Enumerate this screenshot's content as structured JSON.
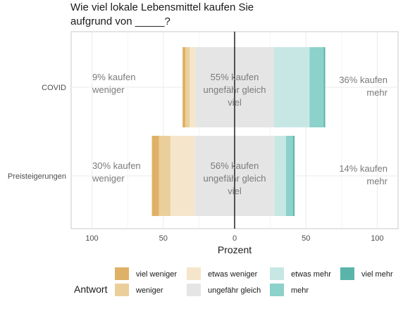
{
  "chart_data": {
    "type": "bar",
    "subtype": "diverging-stacked-likert",
    "title": "Wie viel lokale Lebensmittel kaufen Sie aufgrund von _____?",
    "title_lines": [
      "Wie viel lokale Lebensmittel kaufen Sie",
      "aufgrund von _____?"
    ],
    "xlabel": "Prozent",
    "ylabel": "",
    "xlim": [
      -100,
      100
    ],
    "x_ticks": [
      -100,
      -50,
      0,
      50,
      100
    ],
    "x_tick_labels": [
      "100",
      "50",
      "0",
      "50",
      "100"
    ],
    "grid": true,
    "legend": {
      "title": "Antwort",
      "placement": "bottom",
      "entries": [
        "viel weniger",
        "weniger",
        "etwas weniger",
        "ungefähr gleich",
        "etwas mehr",
        "mehr",
        "viel mehr"
      ]
    },
    "colors": {
      "viel weniger": "#dfb166",
      "weniger": "#ebcf9b",
      "etwas weniger": "#f5e5cb",
      "ungefähr gleich": "#e5e5e5",
      "etwas mehr": "#c7e7e4",
      "mehr": "#8cd1ca",
      "viel mehr": "#5ab4aa"
    },
    "categories": [
      "COVID",
      "Preisteigerungen"
    ],
    "series": [
      {
        "name": "viel weniger",
        "values": [
          2,
          5
        ]
      },
      {
        "name": "weniger",
        "values": [
          3,
          8
        ]
      },
      {
        "name": "etwas weniger",
        "values": [
          4,
          17
        ]
      },
      {
        "name": "ungefähr gleich",
        "values": [
          55,
          56
        ]
      },
      {
        "name": "etwas mehr",
        "values": [
          25,
          8
        ]
      },
      {
        "name": "mehr",
        "values": [
          10,
          5
        ]
      },
      {
        "name": "viel mehr",
        "values": [
          1,
          1
        ]
      }
    ],
    "annotations": [
      {
        "left": "9% kaufen weniger",
        "left_lines": [
          "9% kaufen",
          "weniger"
        ],
        "center": "55% kaufen ungefähr gleich viel",
        "center_lines": [
          "55% kaufen",
          "ungefähr gleich",
          "viel"
        ],
        "right": "36% kaufen mehr",
        "right_lines": [
          "36% kaufen",
          "mehr"
        ]
      },
      {
        "left": "30% kaufen weniger",
        "left_lines": [
          "30% kaufen",
          "weniger"
        ],
        "center": "56% kaufen ungefähr gleich viel",
        "center_lines": [
          "56% kaufen",
          "ungefähr gleich",
          "viel"
        ],
        "right": "14% kaufen mehr",
        "right_lines": [
          "14% kaufen",
          "mehr"
        ]
      }
    ]
  }
}
